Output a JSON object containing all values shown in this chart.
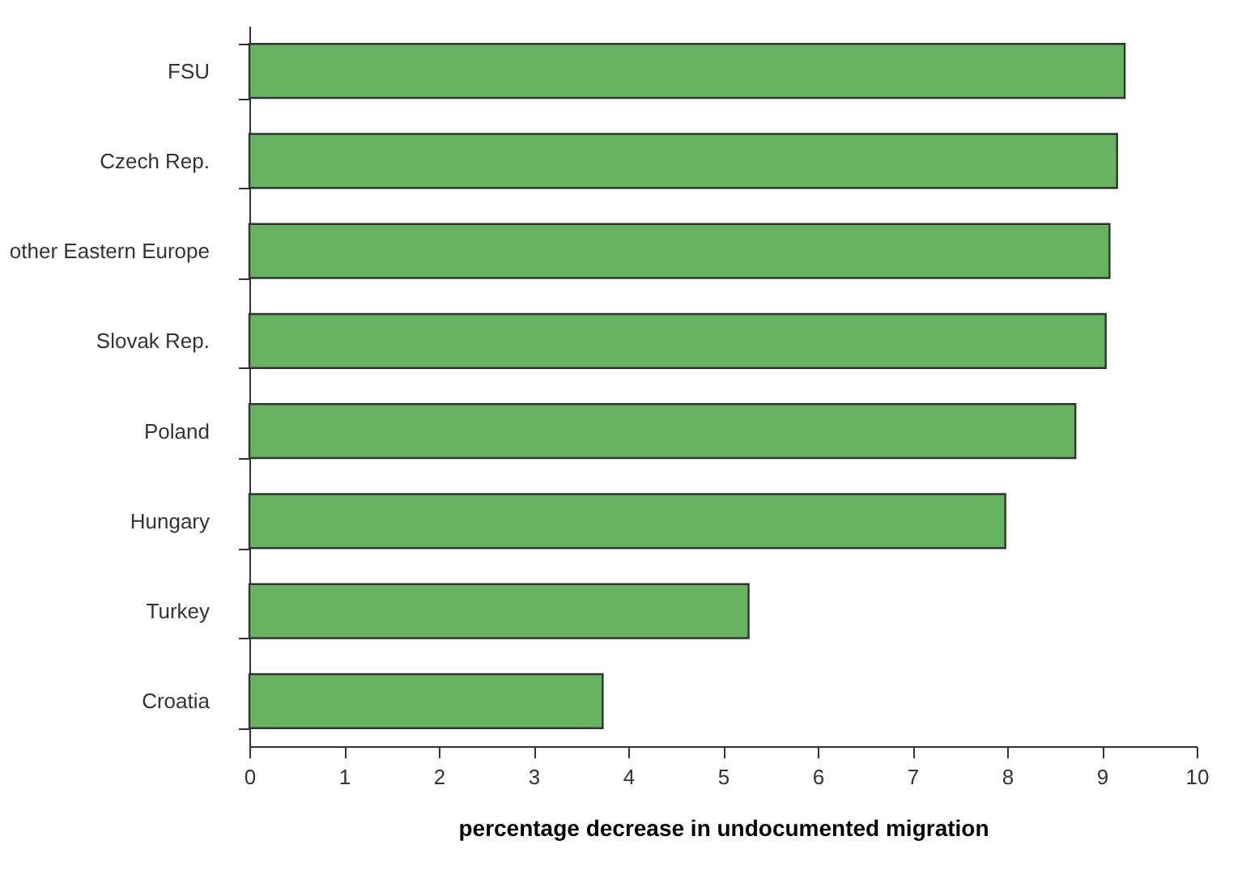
{
  "chart_data": {
    "type": "bar",
    "orientation": "horizontal",
    "xlabel": "percentage decrease in undocumented migration",
    "categories": [
      "FSU",
      "Czech Rep.",
      "other Eastern Europe",
      "Slovak Rep.",
      "Poland",
      "Hungary",
      "Turkey",
      "Croatia"
    ],
    "values": [
      9.24,
      9.16,
      9.08,
      9.04,
      8.72,
      7.98,
      5.27,
      3.73
    ],
    "color": "#66b360",
    "xlim": [
      0,
      10
    ],
    "xticks": [
      0,
      1,
      2,
      3,
      4,
      5,
      6,
      7,
      8,
      9,
      10
    ],
    "grid": false
  }
}
